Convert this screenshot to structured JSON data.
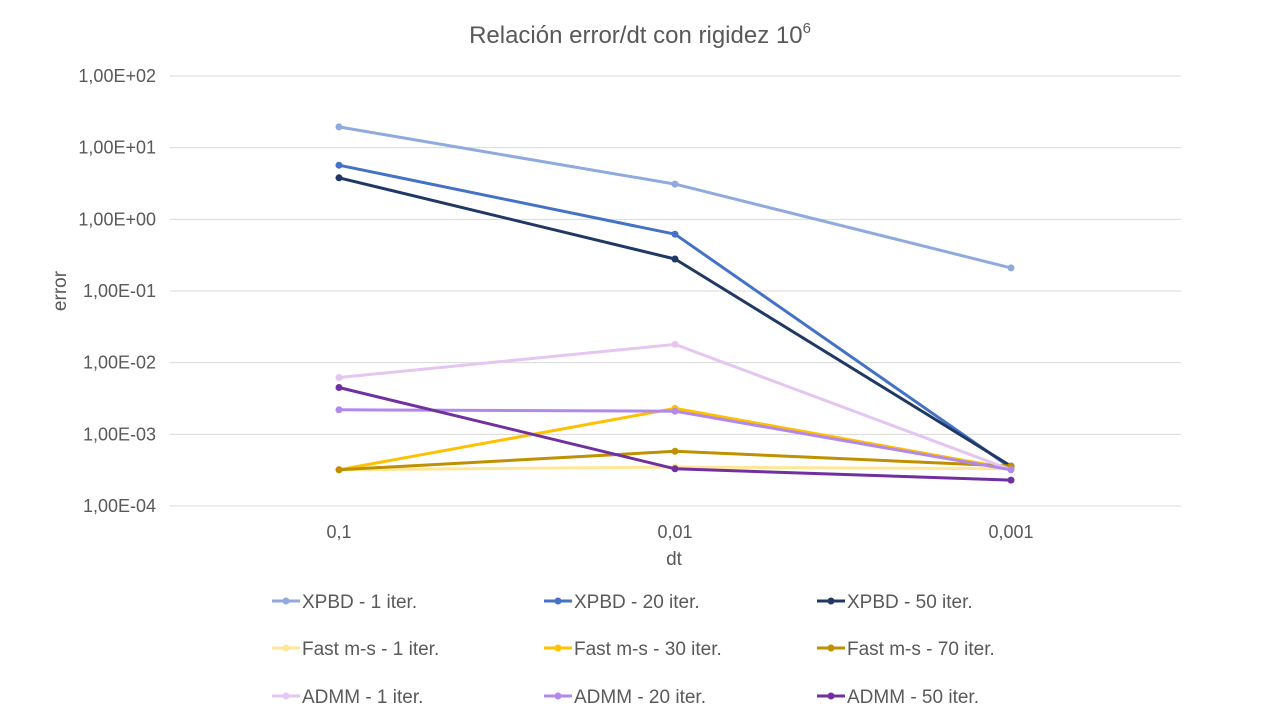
{
  "chart_data": {
    "type": "line",
    "title": "Relación error/dt con rigidez 10",
    "title_superscript": "6",
    "xlabel": "dt",
    "ylabel": "error",
    "y_scale": "log",
    "ylim": [
      0.0001,
      100
    ],
    "y_ticks": [
      {
        "value": 100,
        "label": "1,00E+02"
      },
      {
        "value": 10,
        "label": "1,00E+01"
      },
      {
        "value": 1,
        "label": "1,00E+00"
      },
      {
        "value": 0.1,
        "label": "1,00E-01"
      },
      {
        "value": 0.01,
        "label": "1,00E-02"
      },
      {
        "value": 0.001,
        "label": "1,00E-03"
      },
      {
        "value": 0.0001,
        "label": "1,00E-04"
      }
    ],
    "categories": [
      "0,1",
      "0,01",
      "0,001"
    ],
    "grid": true,
    "legend_position": "bottom",
    "series": [
      {
        "name": "XPBD - 1 iter.",
        "color": "#8faadc",
        "values": [
          19.5,
          3.1,
          0.21
        ]
      },
      {
        "name": "XPBD - 20 iter.",
        "color": "#4472c4",
        "values": [
          5.7,
          0.62,
          0.00034
        ]
      },
      {
        "name": "XPBD - 50 iter.",
        "color": "#203864",
        "values": [
          3.8,
          0.28,
          0.00036
        ]
      },
      {
        "name": "Fast m-s - 1 iter.",
        "color": "#ffe699",
        "values": [
          0.00032,
          0.00035,
          0.00033
        ]
      },
      {
        "name": "Fast m-s - 30 iter.",
        "color": "#ffc000",
        "values": [
          0.00032,
          0.0023,
          0.00033
        ]
      },
      {
        "name": "Fast m-s - 70 iter.",
        "color": "#bf9000",
        "values": [
          0.00032,
          0.00058,
          0.00036
        ]
      },
      {
        "name": "ADMM - 1 iter.",
        "color": "#e4c6f0",
        "values": [
          0.0062,
          0.018,
          0.00032
        ]
      },
      {
        "name": "ADMM - 20 iter.",
        "color": "#b388eb",
        "values": [
          0.0022,
          0.0021,
          0.00032
        ]
      },
      {
        "name": "ADMM - 50 iter.",
        "color": "#7030a0",
        "values": [
          0.0045,
          0.00033,
          0.00023
        ]
      }
    ]
  }
}
